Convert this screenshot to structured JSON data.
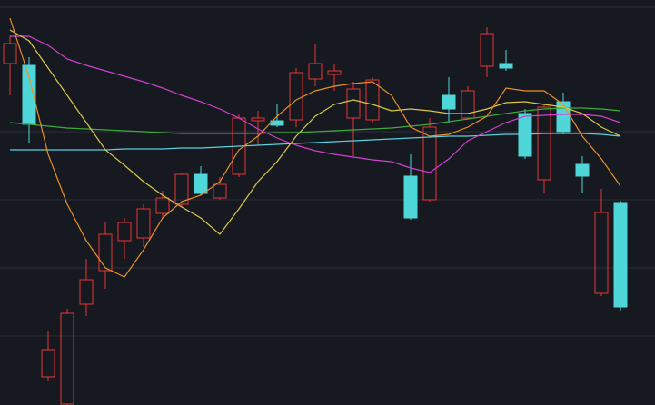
{
  "chart_data": {
    "type": "candlestick",
    "categories": [
      null,
      null,
      null,
      null,
      null,
      null,
      null,
      null,
      null,
      null,
      null,
      null,
      null,
      null,
      null,
      null,
      null,
      null,
      null,
      null,
      null,
      null,
      null,
      null,
      null,
      null,
      null,
      null,
      null,
      null,
      null,
      null,
      null
    ],
    "open": [
      376,
      374,
      31,
      1,
      111,
      148,
      181,
      184,
      211,
      221,
      254,
      228,
      254,
      313,
      313,
      314,
      359,
      364,
      316,
      314,
      null,
      252,
      226,
      341,
      316,
      373,
      376,
      321,
      248,
      334,
      265,
      123,
      223
    ],
    "high": [
      408,
      383,
      81,
      106,
      161,
      201,
      206,
      221,
      236,
      256,
      263,
      251,
      321,
      324,
      331,
      371,
      398,
      376,
      356,
      361,
      null,
      276,
      316,
      361,
      351,
      416,
      391,
      326,
      331,
      344,
      274,
      238,
      225
    ],
    "low": [
      341,
      288,
      26,
      0,
      98,
      128,
      161,
      174,
      206,
      218,
      231,
      226,
      251,
      286,
      306,
      306,
      351,
      346,
      274,
      311,
      null,
      204,
      224,
      311,
      314,
      361,
      368,
      271,
      234,
      298,
      234,
      120,
      104
    ],
    "close": [
      398,
      309,
      61,
      101,
      138,
      188,
      201,
      216,
      228,
      254,
      233,
      243,
      316,
      316,
      308,
      366,
      376,
      368,
      348,
      358,
      null,
      206,
      306,
      326,
      346,
      409,
      371,
      274,
      328,
      301,
      252,
      212,
      108
    ],
    "up_color": "#e8363a",
    "down_color": "#4fd6d8",
    "series": [
      {
        "color": "#5ad0e0",
        "values": [
          281,
          281,
          281,
          281,
          281,
          281,
          282,
          282,
          282,
          283,
          283,
          284,
          285,
          286,
          287,
          288,
          289,
          290,
          291,
          292,
          293,
          294,
          295,
          296,
          296,
          297,
          298,
          298,
          299,
          299,
          299,
          298,
          296
        ]
      },
      {
        "color": "#3cab3c",
        "values": [
          311,
          309,
          307,
          305,
          304,
          303,
          302,
          301,
          300,
          299,
          299,
          299,
          299,
          299,
          300,
          300,
          301,
          302,
          303,
          304,
          305,
          307,
          309,
          312,
          315,
          318,
          321,
          324,
          326,
          327,
          327,
          326,
          324
        ]
      },
      {
        "color": "#d040d0",
        "values": [
          406,
          406,
          396,
          381,
          374,
          368,
          362,
          356,
          349,
          341,
          334,
          326,
          316,
          304,
          294,
          286,
          280,
          276,
          273,
          270,
          268,
          261,
          256,
          271,
          291,
          301,
          311,
          318,
          319,
          320,
          320,
          318,
          311
        ]
      },
      {
        "color": "#d8c84a",
        "values": [
          413,
          401,
          371,
          341,
          311,
          281,
          264,
          246,
          231,
          218,
          206,
          188,
          216,
          246,
          268,
          296,
          318,
          331,
          336,
          331,
          324,
          326,
          324,
          321,
          321,
          326,
          333,
          334,
          331,
          328,
          321,
          306,
          296
        ]
      },
      {
        "color": "#e8902a",
        "values": [
          426,
          361,
          276,
          221,
          181,
          151,
          141,
          171,
          206,
          224,
          231,
          246,
          281,
          296,
          318,
          336,
          346,
          351,
          354,
          356,
          341,
          306,
          296,
          298,
          306,
          318,
          349,
          346,
          346,
          331,
          296,
          271,
          241
        ]
      }
    ],
    "ylim": [
      0,
      446
    ],
    "yticks": [
      76,
      151,
      226,
      301,
      438
    ],
    "grid": true
  }
}
